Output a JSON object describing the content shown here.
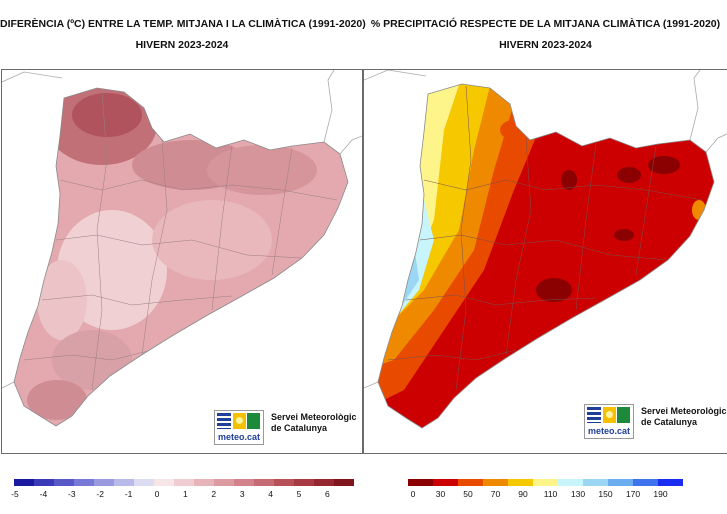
{
  "left_panel": {
    "title": "DIFERÈNCIA (ºC) ENTRE LA TEMP. MITJANA I LA CLIMÀTICA (1991-2020)",
    "subtitle": "HIVERN 2023-2024",
    "legend": {
      "colors": [
        "#1a1aa0",
        "#3a3ab8",
        "#5858c8",
        "#7878d6",
        "#9a9ae0",
        "#babaea",
        "#dcdcf2",
        "#f6e6e8",
        "#efcdd0",
        "#e6b4b9",
        "#dc9ba1",
        "#d2828a",
        "#c66a73",
        "#b8505a",
        "#a83a44",
        "#96262f",
        "#80151e"
      ],
      "ticks": [
        "-5",
        "-4",
        "-3",
        "-2",
        "-1",
        "0",
        "1",
        "2",
        "3",
        "4",
        "5",
        "6"
      ]
    },
    "logo": {
      "brand": "meteo.cat",
      "line1": "Servei Meteorològic",
      "line2": "de Catalunya"
    }
  },
  "right_panel": {
    "title": "% PRECIPITACIÓ RESPECTE DE LA MITJANA CLIMÀTICA (1991-2020)",
    "subtitle": "HIVERN 2023-2024",
    "legend": {
      "colors": [
        "#8b0000",
        "#cc0000",
        "#e84a00",
        "#ef8a00",
        "#f6c800",
        "#fdf48a",
        "#c8f4fb",
        "#9cd6f5",
        "#6aaef0",
        "#3f73ee",
        "#1a2cf2"
      ],
      "ticks": [
        "0",
        "30",
        "50",
        "70",
        "90",
        "110",
        "130",
        "150",
        "170",
        "190"
      ]
    },
    "logo": {
      "brand": "meteo.cat",
      "line1": "Servei Meteorològic",
      "line2": "de Catalunya"
    }
  }
}
